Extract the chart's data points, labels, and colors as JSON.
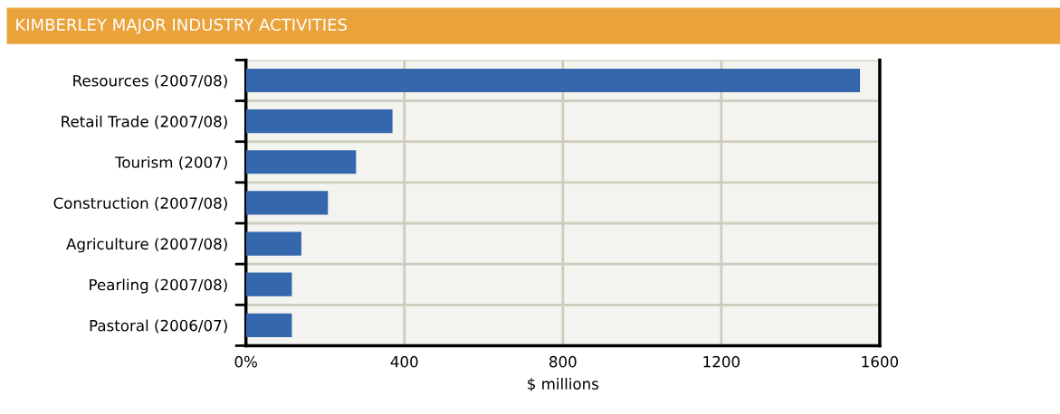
{
  "chart_data": {
    "type": "bar",
    "orientation": "horizontal",
    "title": "KIMBERLEY MAJOR INDUSTRY ACTIVITIES",
    "xlabel": "$ millions",
    "categories": [
      "Resources (2007/08)",
      "Retail Trade (2007/08)",
      "Tourism (2007)",
      "Construction (2007/08)",
      "Agriculture (2007/08)",
      "Pearling (2007/08)",
      "Pastoral (2006/07)"
    ],
    "values": [
      1550,
      370,
      278,
      207,
      140,
      116,
      116
    ],
    "color": "#3567ad",
    "xlim": [
      0,
      1600
    ],
    "xticks": [
      {
        "value": 0,
        "label": "0%"
      },
      400,
      800,
      1200,
      1600
    ],
    "grid": true
  }
}
